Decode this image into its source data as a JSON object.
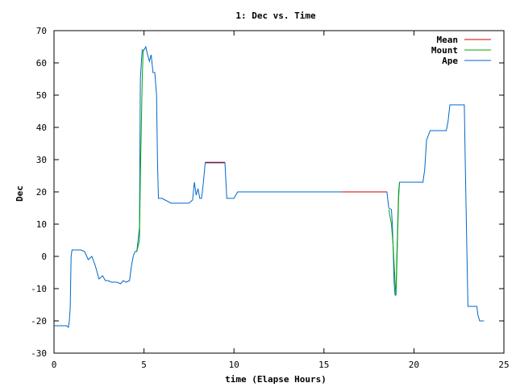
{
  "chart_data": {
    "type": "line",
    "title": "1: Dec vs. Time",
    "xlabel": "time (Elapse Hours)",
    "ylabel": "Dec",
    "xlim": [
      0,
      25
    ],
    "ylim": [
      -30,
      70
    ],
    "xticks": [
      "0",
      "5",
      "10",
      "15",
      "20",
      "25"
    ],
    "yticks": [
      "-30",
      "-20",
      "-10",
      "0",
      "10",
      "20",
      "30",
      "40",
      "50",
      "60",
      "70"
    ],
    "grid": false,
    "legend_position": "top-right",
    "series": [
      {
        "name": "Mean",
        "color": "#cc0000",
        "x": [
          8.4,
          9.5,
          16.0,
          18.5
        ],
        "y": [
          29.2,
          29.2,
          20.0,
          20.0
        ],
        "segments": [
          [
            0,
            1
          ],
          [
            2,
            3
          ]
        ]
      },
      {
        "name": "Mount",
        "color": "#00aa00",
        "x": [
          4.6,
          4.75,
          4.8,
          4.85,
          4.9,
          4.95,
          5.0,
          18.6,
          18.75,
          18.85,
          18.95,
          19.0,
          19.05,
          19.1,
          19.15,
          19.2
        ],
        "y": [
          1.5,
          5.0,
          25.0,
          40.0,
          55.0,
          63.5,
          64.0,
          14.5,
          10.0,
          3.0,
          -8.0,
          -12.0,
          -3.0,
          8.0,
          18.0,
          23.0
        ],
        "segments": [
          [
            0,
            6
          ],
          [
            7,
            15
          ]
        ]
      },
      {
        "name": "Ape",
        "color": "#0066cc",
        "x": [
          0.0,
          0.5,
          0.7,
          0.8,
          0.85,
          0.9,
          0.95,
          1.0,
          1.5,
          1.7,
          1.9,
          2.1,
          2.3,
          2.5,
          2.7,
          2.85,
          3.0,
          3.2,
          3.5,
          3.7,
          3.85,
          4.0,
          4.2,
          4.3,
          4.4,
          4.5,
          4.6,
          4.75,
          4.8,
          4.85,
          4.9,
          5.0,
          5.1,
          5.2,
          5.3,
          5.4,
          5.5,
          5.6,
          5.7,
          5.75,
          5.8,
          5.85,
          5.9,
          6.0,
          6.5,
          6.6,
          7.0,
          7.5,
          7.7,
          7.8,
          7.9,
          8.0,
          8.1,
          8.2,
          8.3,
          8.4,
          8.5,
          9.5,
          9.6,
          10.0,
          10.2,
          16.0,
          18.5,
          18.6,
          18.75,
          18.8,
          18.85,
          18.9,
          18.95,
          19.0,
          19.05,
          19.1,
          19.15,
          19.2,
          19.3,
          20.5,
          20.6,
          20.7,
          20.9,
          21.0,
          21.8,
          21.9,
          22.0,
          22.8,
          22.85,
          22.95,
          23.0,
          23.5,
          23.55,
          23.65,
          23.7,
          23.9
        ],
        "y": [
          -21.5,
          -21.5,
          -21.5,
          -22.0,
          -20.0,
          -16.0,
          0.0,
          2.0,
          2.0,
          1.5,
          -1.0,
          0.0,
          -3.0,
          -7.0,
          -6.0,
          -7.5,
          -7.5,
          -8.0,
          -8.0,
          -8.5,
          -7.5,
          -8.0,
          -7.5,
          -3.0,
          0.0,
          1.5,
          1.5,
          9.0,
          55.0,
          60.0,
          64.0,
          64.0,
          65.0,
          62.5,
          60.5,
          62.5,
          57.0,
          57.0,
          50.0,
          30.0,
          18.0,
          18.0,
          18.0,
          18.0,
          16.5,
          16.5,
          16.5,
          16.5,
          17.5,
          23.0,
          19.0,
          21.0,
          18.0,
          18.0,
          23.0,
          29.0,
          29.0,
          29.0,
          18.0,
          18.0,
          20.0,
          20.0,
          20.0,
          15.0,
          14.5,
          10.0,
          2.0,
          -8.0,
          -12.0,
          -12.0,
          0.0,
          10.0,
          20.0,
          23.0,
          23.0,
          23.0,
          27.0,
          36.0,
          39.0,
          39.0,
          39.0,
          42.0,
          47.0,
          47.0,
          30.0,
          0.0,
          -15.5,
          -15.5,
          -18.0,
          -20.0,
          -20.0,
          -20.0
        ]
      }
    ]
  }
}
